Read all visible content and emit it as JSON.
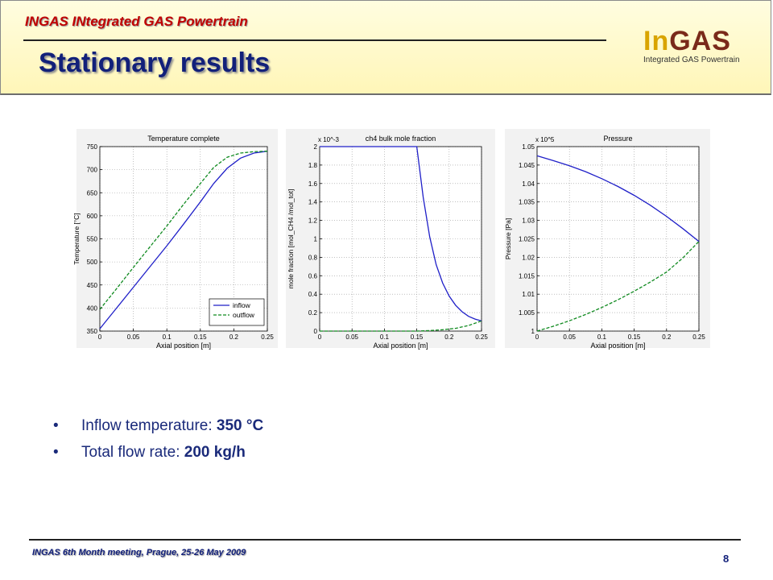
{
  "header": {
    "project_title": "INGAS INtegrated GAS Powertrain",
    "page_title": "Stationary results",
    "logo": {
      "in": "In",
      "gas": "GAS",
      "subtitle": "Integrated GAS Powertrain"
    }
  },
  "bullets": [
    {
      "label": "Inflow temperature: ",
      "value": "350 °C"
    },
    {
      "label": "Total flow rate: ",
      "value": "200 kg/h"
    }
  ],
  "footer": {
    "text": "INGAS 6th Month meeting, Prague, 25-26 May 2009",
    "page_number": "8"
  },
  "colors": {
    "inflow": "#1f1fc8",
    "outflow": "#0f8a1f",
    "title": "#12207a",
    "project": "#c00000"
  },
  "chart_data": [
    {
      "type": "line",
      "title": "Temperature complete",
      "xlabel": "Axial position [m]",
      "ylabel": "Temperature [°C]",
      "xlim": [
        0,
        0.25
      ],
      "ylim": [
        350,
        750
      ],
      "xticks": [
        "0",
        "0.05",
        "0.1",
        "0.15",
        "0.2",
        "0.25"
      ],
      "yticks": [
        "350",
        "400",
        "450",
        "500",
        "550",
        "600",
        "650",
        "700",
        "750"
      ],
      "grid": true,
      "legend_position": "bottom-right",
      "series": [
        {
          "name": "inflow",
          "style": "solid",
          "x": [
            0,
            0.025,
            0.05,
            0.075,
            0.1,
            0.125,
            0.15,
            0.17,
            0.19,
            0.21,
            0.23,
            0.25
          ],
          "y": [
            355,
            400,
            445,
            490,
            535,
            582,
            630,
            670,
            703,
            725,
            736,
            740
          ]
        },
        {
          "name": "outflow",
          "style": "dashed",
          "x": [
            0,
            0.025,
            0.05,
            0.075,
            0.1,
            0.125,
            0.15,
            0.17,
            0.19,
            0.21,
            0.23,
            0.25
          ],
          "y": [
            397,
            442,
            488,
            533,
            578,
            625,
            670,
            705,
            727,
            736,
            739,
            740
          ]
        }
      ]
    },
    {
      "type": "line",
      "title": "ch4 bulk mole fraction",
      "xlabel": "Axial position [m]",
      "ylabel": "mole fraction [mol_CH4 /mol_tot]",
      "multiplier": "x 10^-3",
      "xlim": [
        0,
        0.25
      ],
      "ylim": [
        0,
        2
      ],
      "xticks": [
        "0",
        "0.05",
        "0.1",
        "0.15",
        "0.2",
        "0.25"
      ],
      "yticks": [
        "0",
        "0.2",
        "0.4",
        "0.6",
        "0.8",
        "1",
        "1.2",
        "1.4",
        "1.6",
        "1.8",
        "2"
      ],
      "grid": true,
      "series": [
        {
          "name": "inflow",
          "style": "solid",
          "x": [
            0,
            0.15,
            0.16,
            0.17,
            0.18,
            0.19,
            0.2,
            0.21,
            0.22,
            0.23,
            0.24,
            0.25
          ],
          "y": [
            2.0,
            2.0,
            1.45,
            1.02,
            0.72,
            0.52,
            0.38,
            0.28,
            0.21,
            0.16,
            0.13,
            0.11
          ]
        },
        {
          "name": "outflow",
          "style": "dashed",
          "x": [
            0,
            0.15,
            0.17,
            0.19,
            0.21,
            0.23,
            0.25
          ],
          "y": [
            0.0,
            0.0,
            0.005,
            0.015,
            0.03,
            0.06,
            0.11
          ]
        }
      ]
    },
    {
      "type": "line",
      "title": "Pressure",
      "xlabel": "Axial position [m]",
      "ylabel": "Pressure [Pa]",
      "multiplier": "x 10^5",
      "xlim": [
        0,
        0.25
      ],
      "ylim": [
        1,
        1.05
      ],
      "xticks": [
        "0",
        "0.05",
        "0.1",
        "0.15",
        "0.2",
        "0.25"
      ],
      "yticks": [
        "1",
        "1.005",
        "1.01",
        "1.015",
        "1.02",
        "1.025",
        "1.03",
        "1.035",
        "1.04",
        "1.045",
        "1.05"
      ],
      "grid": true,
      "series": [
        {
          "name": "inflow",
          "style": "solid",
          "x": [
            0,
            0.025,
            0.05,
            0.075,
            0.1,
            0.125,
            0.15,
            0.175,
            0.2,
            0.225,
            0.25
          ],
          "y": [
            1.0475,
            1.0462,
            1.0448,
            1.0432,
            1.0413,
            1.0392,
            1.0368,
            1.0341,
            1.0311,
            1.0278,
            1.0243
          ]
        },
        {
          "name": "outflow",
          "style": "dashed",
          "x": [
            0,
            0.025,
            0.05,
            0.075,
            0.1,
            0.125,
            0.15,
            0.175,
            0.2,
            0.225,
            0.25
          ],
          "y": [
            1.0,
            1.0013,
            1.0028,
            1.0045,
            1.0064,
            1.0085,
            1.0108,
            1.0133,
            1.016,
            1.0198,
            1.0243
          ]
        }
      ]
    }
  ]
}
